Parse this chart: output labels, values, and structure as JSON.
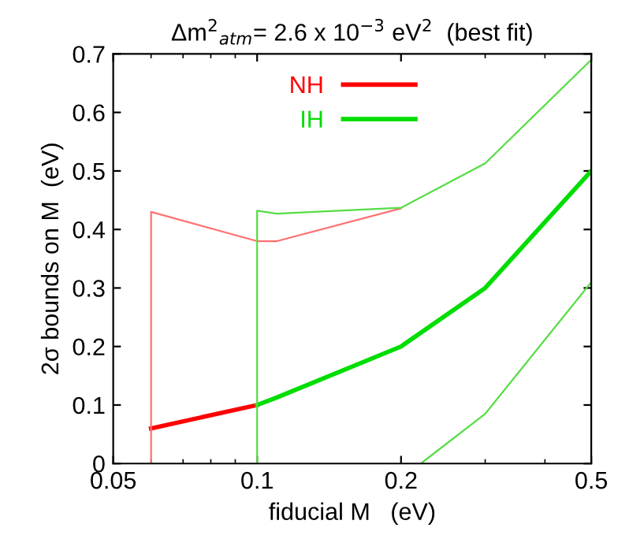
{
  "chart_data": {
    "type": "line",
    "title": "Δm$^{2}$$_{atm}$= 2.6 x 10$^{−3}$ eV$^{2}$  (best fit)",
    "xlabel": "fiducial M   (eV)",
    "ylabel": "2σ bounds on M  (eV)",
    "log": "x",
    "xlim": [
      0.05,
      0.5
    ],
    "xticks": [
      0.05,
      0.1,
      0.2,
      0.5
    ],
    "ylim": [
      0,
      0.7
    ],
    "yticks": [
      0,
      0.1,
      0.2,
      0.3,
      0.4,
      0.5,
      0.6,
      0.7
    ],
    "grid": false,
    "legend": "top",
    "marker": "none",
    "line_style": "solid",
    "series": [
      {
        "name": "NH",
        "color": "#ff0000",
        "x": [
          0.06,
          0.1
        ],
        "values": [
          0.06,
          0.1
        ]
      },
      {
        "name": "IH",
        "color": "#00dd00",
        "x": [
          0.1,
          0.11,
          0.2,
          0.3,
          0.5
        ],
        "values": [
          0.1,
          0.113,
          0.2,
          0.3,
          0.5
        ]
      },
      {
        "color": "#ff7070",
        "x": [
          0.06,
          0.06,
          0.1,
          0.11,
          0.2
        ],
        "values": [
          0,
          0.43,
          0.38,
          0.38,
          0.436
        ]
      },
      {
        "color": "#55dd44",
        "x": [
          0.1,
          0.1,
          0.11,
          0.2,
          0.3,
          0.5
        ],
        "values": [
          0,
          0.432,
          0.427,
          0.437,
          0.513,
          0.69
        ]
      },
      {
        "color": "#55dd44",
        "x": [
          0.22,
          0.3,
          0.5
        ],
        "values": [
          0,
          0.085,
          0.31
        ]
      }
    ]
  }
}
